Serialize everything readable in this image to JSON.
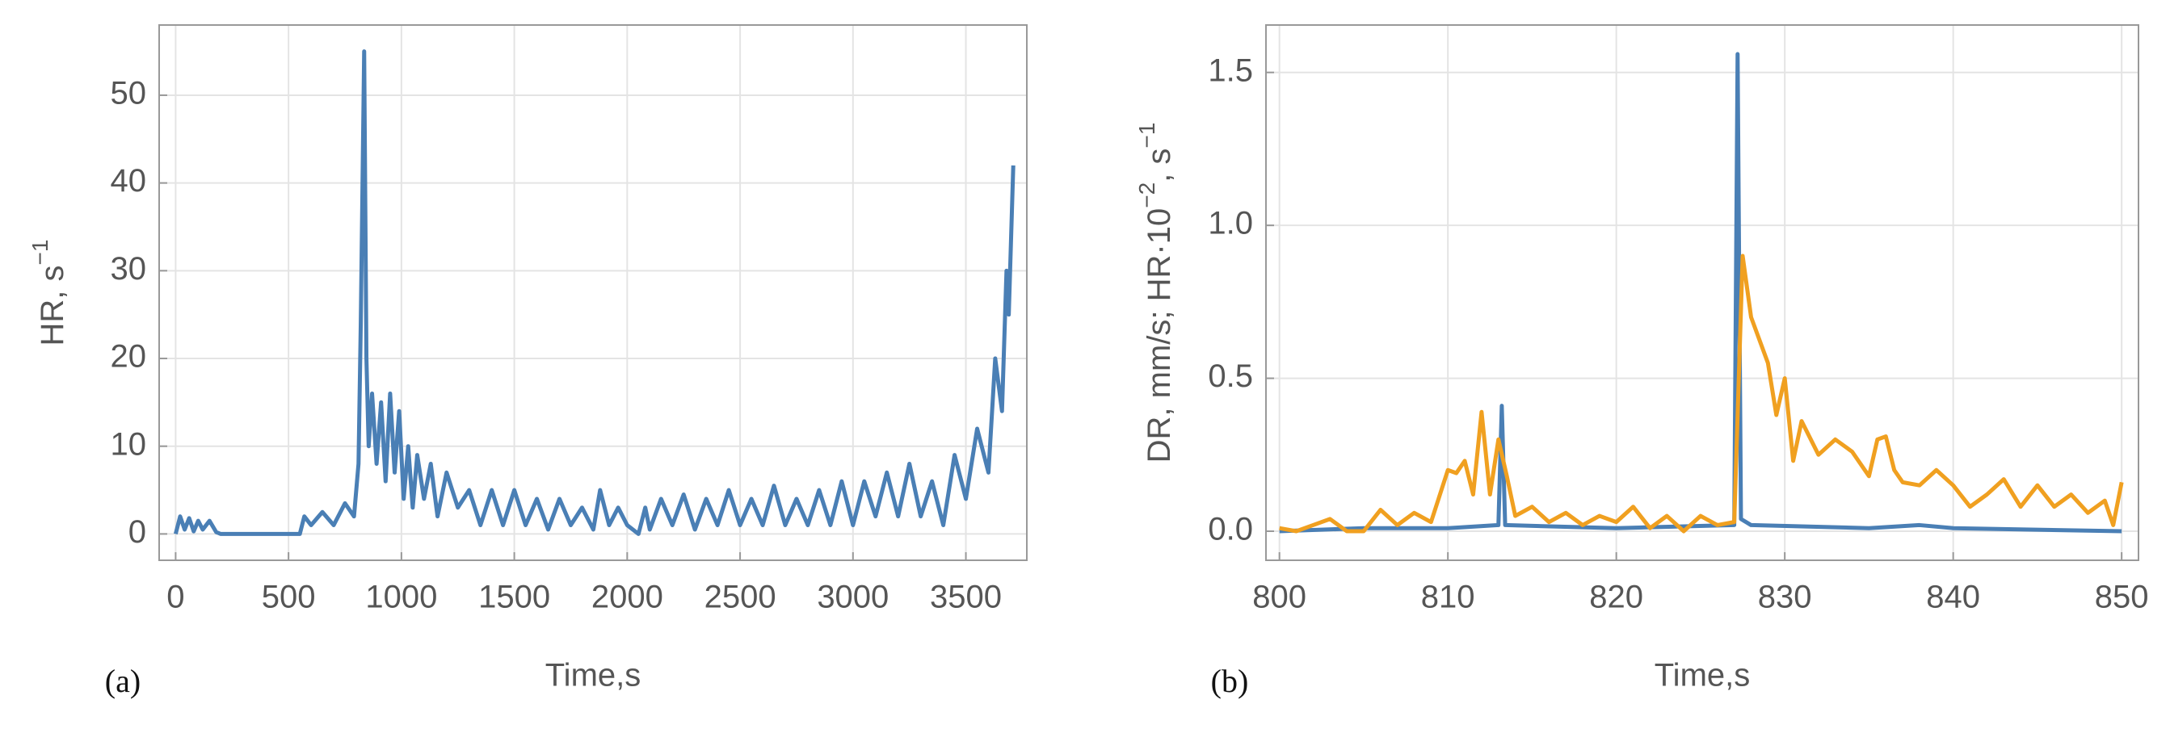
{
  "chart_data": [
    {
      "type": "line",
      "panel_label": "(a)",
      "xlabel": "Time,s",
      "ylabel": [
        {
          "text": "HR, s"
        },
        {
          "text": "−1",
          "sup": true
        }
      ],
      "xlim": [
        -73,
        3770
      ],
      "xticks": [
        0,
        500,
        1000,
        1500,
        2000,
        2500,
        3000,
        3500
      ],
      "ylim": [
        -3,
        58
      ],
      "yticks": [
        0,
        10,
        20,
        30,
        40,
        50
      ],
      "grid": true,
      "series": [
        {
          "color": "#4a7fb5",
          "x": [
            0,
            20,
            40,
            60,
            80,
            100,
            120,
            150,
            180,
            200,
            300,
            400,
            500,
            550,
            570,
            600,
            650,
            700,
            750,
            790,
            810,
            820,
            835,
            845,
            855,
            870,
            890,
            910,
            930,
            950,
            970,
            990,
            1010,
            1030,
            1050,
            1070,
            1100,
            1130,
            1160,
            1200,
            1250,
            1300,
            1350,
            1400,
            1450,
            1500,
            1550,
            1600,
            1650,
            1700,
            1750,
            1800,
            1850,
            1880,
            1920,
            1960,
            2000,
            2050,
            2080,
            2100,
            2150,
            2200,
            2250,
            2300,
            2350,
            2400,
            2450,
            2500,
            2550,
            2600,
            2650,
            2700,
            2750,
            2800,
            2850,
            2900,
            2950,
            3000,
            3050,
            3100,
            3150,
            3200,
            3250,
            3300,
            3350,
            3400,
            3450,
            3500,
            3550,
            3600,
            3630,
            3660,
            3680,
            3690,
            3710
          ],
          "values": [
            0,
            2,
            0.5,
            1.8,
            0.3,
            1.5,
            0.5,
            1.5,
            0.2,
            0,
            0,
            0,
            0,
            0,
            2,
            1,
            2.5,
            1,
            3.5,
            2,
            8,
            24,
            55,
            20,
            10,
            16,
            8,
            15,
            6,
            16,
            7,
            14,
            4,
            10,
            3,
            9,
            4,
            8,
            2,
            7,
            3,
            5,
            1,
            5,
            1,
            5,
            1,
            4,
            0.5,
            4,
            1,
            3,
            0.5,
            5,
            1,
            3,
            1,
            0,
            3,
            0.5,
            4,
            1,
            4.5,
            0.5,
            4,
            1,
            5,
            1,
            4,
            1,
            5.5,
            1,
            4,
            1,
            5,
            1,
            6,
            1,
            6,
            2,
            7,
            2,
            8,
            2,
            6,
            1,
            9,
            4,
            12,
            7,
            20,
            14,
            30,
            25,
            42
          ]
        }
      ]
    },
    {
      "type": "line",
      "panel_label": "(b)",
      "xlabel": "Time,s",
      "ylabel": [
        {
          "text": "DR, mm/s; HR·10"
        },
        {
          "text": "−2",
          "sup": true
        },
        {
          "text": ", s"
        },
        {
          "text": "−1",
          "sup": true
        }
      ],
      "xlim": [
        799.2,
        851
      ],
      "xticks": [
        800,
        810,
        820,
        830,
        840,
        850
      ],
      "ylim": [
        -0.095,
        1.655
      ],
      "yticks": [
        {
          "value": 0,
          "label": "0.0"
        },
        0.5,
        {
          "value": 1,
          "label": "1.0"
        },
        1.5
      ],
      "grid": true,
      "series": [
        {
          "color": "#4a7fb5",
          "x": [
            800,
            805,
            810,
            813,
            813.2,
            813.4,
            820,
            827,
            827.2,
            827.4,
            828,
            835,
            838,
            840,
            850
          ],
          "values": [
            0,
            0.01,
            0.01,
            0.02,
            0.41,
            0.02,
            0.01,
            0.02,
            1.56,
            0.04,
            0.02,
            0.01,
            0.02,
            0.01,
            0
          ]
        },
        {
          "color": "#f0a020",
          "x": [
            800,
            801,
            802,
            803,
            804,
            805,
            806,
            807,
            808,
            809,
            810,
            810.5,
            811,
            811.5,
            812,
            812.5,
            813,
            813.5,
            814,
            815,
            816,
            817,
            818,
            819,
            820,
            821,
            822,
            823,
            824,
            825,
            826,
            827,
            827.5,
            828,
            829,
            829.5,
            830,
            830.5,
            831,
            832,
            833,
            834,
            835,
            835.5,
            836,
            836.5,
            837,
            838,
            839,
            840,
            841,
            842,
            843,
            844,
            845,
            846,
            847,
            848,
            849,
            849.5,
            850
          ],
          "values": [
            0.01,
            0,
            0.02,
            0.04,
            0,
            0,
            0.07,
            0.02,
            0.06,
            0.03,
            0.2,
            0.19,
            0.23,
            0.12,
            0.39,
            0.12,
            0.3,
            0.18,
            0.05,
            0.08,
            0.03,
            0.06,
            0.02,
            0.05,
            0.03,
            0.08,
            0.01,
            0.05,
            0,
            0.05,
            0.02,
            0.03,
            0.9,
            0.7,
            0.55,
            0.38,
            0.5,
            0.23,
            0.36,
            0.25,
            0.3,
            0.26,
            0.18,
            0.3,
            0.31,
            0.2,
            0.16,
            0.15,
            0.2,
            0.15,
            0.08,
            0.12,
            0.17,
            0.08,
            0.15,
            0.08,
            0.12,
            0.06,
            0.1,
            0.02,
            0.16
          ]
        }
      ]
    }
  ]
}
